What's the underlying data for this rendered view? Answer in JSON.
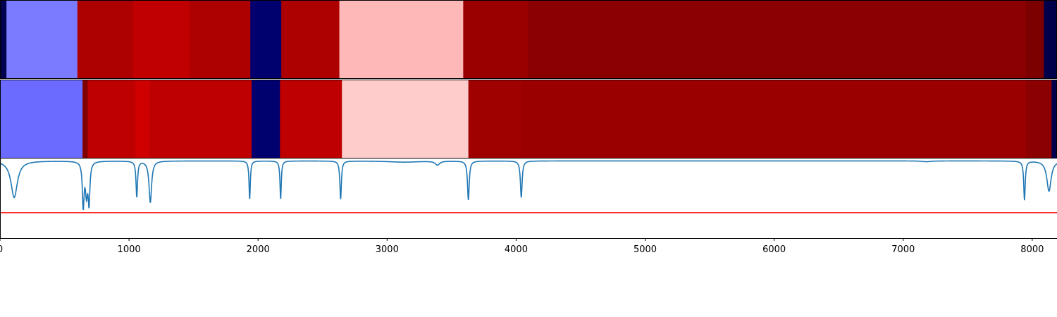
{
  "chart_data": [
    {
      "type": "heatmap",
      "panel": "segmentation-track-1",
      "xlim": [
        0,
        8192
      ],
      "segments": [
        {
          "start": 0,
          "end": 50,
          "color": "#00004f"
        },
        {
          "start": 50,
          "end": 600,
          "color": "#7b7bff"
        },
        {
          "start": 600,
          "end": 1030,
          "color": "#ad0000"
        },
        {
          "start": 1030,
          "end": 1470,
          "color": "#c00000"
        },
        {
          "start": 1470,
          "end": 1940,
          "color": "#ad0000"
        },
        {
          "start": 1940,
          "end": 2180,
          "color": "#00006f"
        },
        {
          "start": 2180,
          "end": 2630,
          "color": "#ad0000"
        },
        {
          "start": 2630,
          "end": 3590,
          "color": "#ffb8b8"
        },
        {
          "start": 3590,
          "end": 4090,
          "color": "#9b0000"
        },
        {
          "start": 4090,
          "end": 7950,
          "color": "#8b0000"
        },
        {
          "start": 7950,
          "end": 8090,
          "color": "#7c0000"
        },
        {
          "start": 8090,
          "end": 8192,
          "color": "#00004a"
        }
      ]
    },
    {
      "type": "heatmap",
      "panel": "segmentation-track-2",
      "xlim": [
        0,
        8192
      ],
      "segments": [
        {
          "start": 0,
          "end": 640,
          "color": "#6b6bff"
        },
        {
          "start": 640,
          "end": 680,
          "color": "#7e0000"
        },
        {
          "start": 680,
          "end": 1050,
          "color": "#bf0000"
        },
        {
          "start": 1050,
          "end": 1160,
          "color": "#cf0000"
        },
        {
          "start": 1160,
          "end": 1950,
          "color": "#bf0000"
        },
        {
          "start": 1950,
          "end": 2170,
          "color": "#00006f"
        },
        {
          "start": 2170,
          "end": 2650,
          "color": "#bf0000"
        },
        {
          "start": 2650,
          "end": 3630,
          "color": "#ffcccc"
        },
        {
          "start": 3630,
          "end": 4040,
          "color": "#9f0000"
        },
        {
          "start": 4040,
          "end": 7950,
          "color": "#9b0000"
        },
        {
          "start": 7950,
          "end": 8150,
          "color": "#8b0000"
        },
        {
          "start": 8150,
          "end": 8192,
          "color": "#00004f"
        }
      ]
    },
    {
      "type": "line",
      "panel": "novelty-curve",
      "xlim": [
        0,
        8192
      ],
      "ylim": [
        0,
        1
      ],
      "baseline": 0.97,
      "threshold": 0.32,
      "dips": [
        {
          "x": 110,
          "depth": 0.46,
          "width": 30
        },
        {
          "x": 645,
          "depth": 0.55,
          "width": 8
        },
        {
          "x": 670,
          "depth": 0.38,
          "width": 10
        },
        {
          "x": 690,
          "depth": 0.5,
          "width": 8
        },
        {
          "x": 1060,
          "depth": 0.45,
          "width": 7
        },
        {
          "x": 1165,
          "depth": 0.52,
          "width": 12
        },
        {
          "x": 1935,
          "depth": 0.48,
          "width": 6
        },
        {
          "x": 2175,
          "depth": 0.48,
          "width": 6
        },
        {
          "x": 2640,
          "depth": 0.48,
          "width": 7
        },
        {
          "x": 3130,
          "depth": 0.015,
          "width": 150
        },
        {
          "x": 3390,
          "depth": 0.05,
          "width": 20
        },
        {
          "x": 3630,
          "depth": 0.49,
          "width": 8
        },
        {
          "x": 4040,
          "depth": 0.46,
          "width": 8
        },
        {
          "x": 7180,
          "depth": 0.01,
          "width": 40
        },
        {
          "x": 7940,
          "depth": 0.49,
          "width": 7
        },
        {
          "x": 8130,
          "depth": 0.38,
          "width": 20
        }
      ],
      "line_color": "#1f77b4",
      "threshold_color": "#ff0000"
    }
  ],
  "x_axis": {
    "ticks": [
      {
        "value": 0,
        "label": "0"
      },
      {
        "value": 1000,
        "label": "1000"
      },
      {
        "value": 2000,
        "label": "2000"
      },
      {
        "value": 3000,
        "label": "3000"
      },
      {
        "value": 4000,
        "label": "4000"
      },
      {
        "value": 5000,
        "label": "5000"
      },
      {
        "value": 6000,
        "label": "6000"
      },
      {
        "value": 7000,
        "label": "7000"
      },
      {
        "value": 8000,
        "label": "8000"
      }
    ]
  }
}
